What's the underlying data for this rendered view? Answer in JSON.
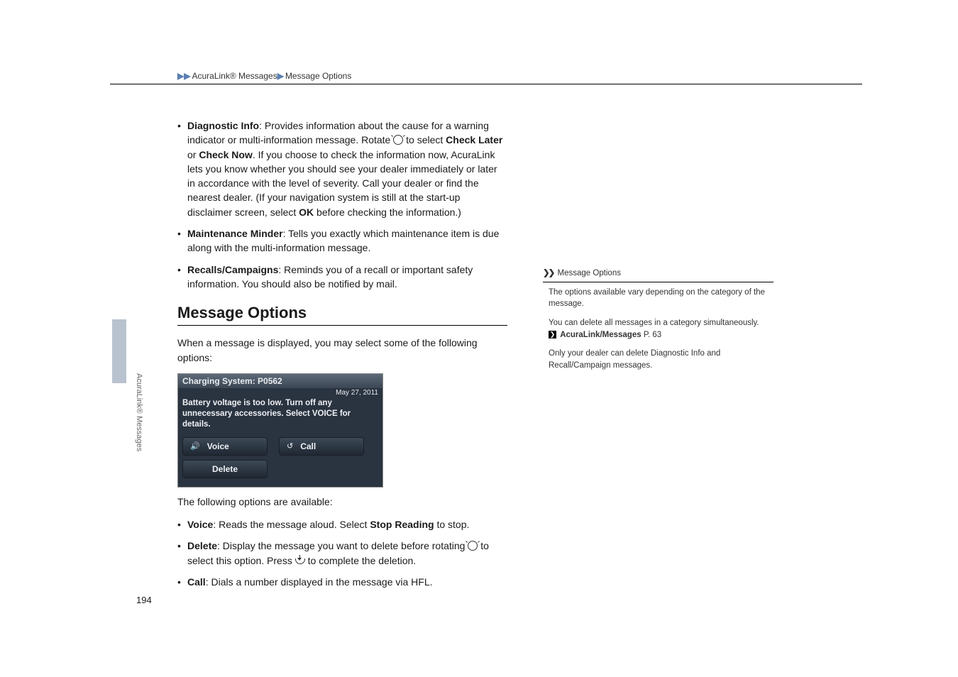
{
  "header": {
    "breadcrumb_a": "AcuraLink® Messages",
    "breadcrumb_b": "Message Options"
  },
  "bullets_top": [
    {
      "lead": "Diagnostic Info",
      "text": ": Provides information about the cause for a warning indicator or multi-information message. Rotate ",
      "mid": " to select ",
      "bold1": "Check Later",
      "or": " or ",
      "bold2": "Check Now",
      "tail": ". If you choose to check the information now, AcuraLink lets you know whether you should see your dealer immediately or later in accordance with the level of severity. Call your dealer or find the nearest dealer. (If your navigation system is still at the start-up disclaimer screen, select ",
      "bold3": "OK",
      "tail2": " before checking the information.)"
    },
    {
      "lead": "Maintenance Minder",
      "text": ": Tells you exactly which maintenance item is due along with the multi-information message."
    },
    {
      "lead": "Recalls/Campaigns",
      "text": ": Reminds you of a recall or important safety information. You should also be notified by mail."
    }
  ],
  "section_title": "Message Options",
  "intro": "When a message is displayed, you may select some of the following options:",
  "screenshot": {
    "title": "Charging System:  P0562",
    "date": "May 27, 2011",
    "body": "Battery voltage is too low. Turn off any unnecessary accessories. Select VOICE for details.",
    "btn_voice": "Voice",
    "btn_call": "Call",
    "btn_delete": "Delete",
    "voice_sym": "🔊",
    "call_sym": "↺"
  },
  "following_intro": "The following options are available:",
  "bullets_bottom": [
    {
      "lead": "Voice",
      "text": ": Reads the message aloud. Select ",
      "bold1": "Stop Reading",
      "tail": " to stop."
    },
    {
      "lead": "Delete",
      "text": ": Display the message you want to delete before rotating ",
      "tail": " to select this option. Press ",
      "tail2": " to complete the deletion."
    },
    {
      "lead": "Call",
      "text": ": Dials a number displayed in the message via HFL."
    }
  ],
  "note": {
    "title": "Message Options",
    "p1": "The options available vary depending on the category of the message.",
    "p2": "You can delete all messages in a category simultaneously.",
    "link_label": "AcuraLink/Messages",
    "link_page": "P. 63",
    "p3": "Only your dealer can delete Diagnostic Info and Recall/Campaign messages."
  },
  "side_label": "AcuraLink® Messages",
  "page_number": "194",
  "colors": {
    "arrow": "#5b7fb0",
    "tab": "#b9c3cf"
  }
}
